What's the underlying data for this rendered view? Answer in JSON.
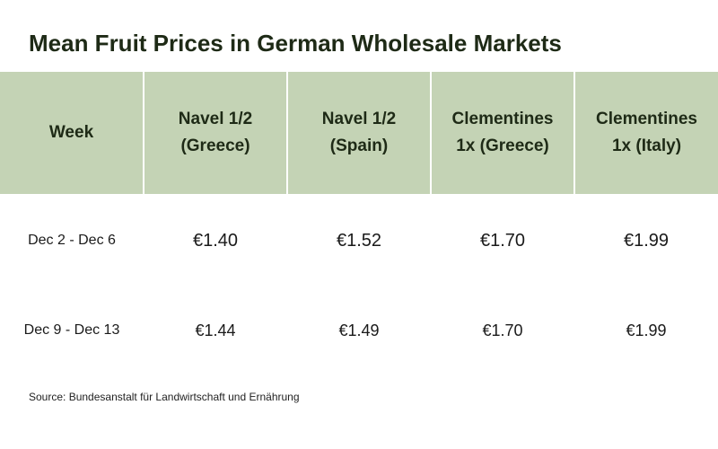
{
  "title": "Mean Fruit Prices in German Wholesale Markets",
  "source": "Source: Bundesanstalt für Landwirtschaft und Ernährung",
  "colors": {
    "header_bg": "#c4d3b5",
    "title_text": "#1e2a16"
  },
  "chart_data": {
    "type": "table",
    "title": "Mean Fruit Prices in German Wholesale Markets",
    "columns": [
      {
        "line1": "Week",
        "line2": ""
      },
      {
        "line1": "Navel 1/2",
        "line2": "(Greece)"
      },
      {
        "line1": "Navel 1/2",
        "line2": "(Spain)"
      },
      {
        "line1": "Clementines",
        "line2": "1x (Greece)"
      },
      {
        "line1": "Clementines",
        "line2": "1x (Italy)"
      }
    ],
    "rows": [
      {
        "week": "Dec 2 - Dec 6",
        "values": [
          "€1.40",
          "€1.52",
          "€1.70",
          "€1.99"
        ]
      },
      {
        "week": "Dec 9 - Dec 13",
        "values": [
          "€1.44",
          "€1.49",
          "€1.70",
          "€1.99"
        ]
      }
    ]
  }
}
